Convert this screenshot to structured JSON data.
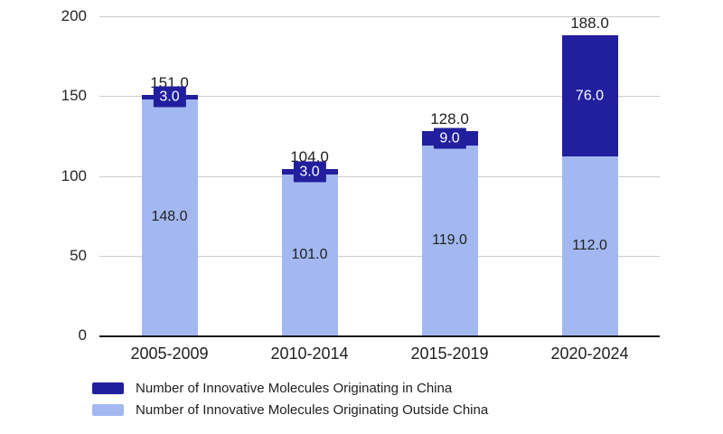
{
  "colors": {
    "in_china": "#221f9e",
    "outside_china": "#a3b8f0",
    "gridline": "#cccccc",
    "axis": "#1a1a1a",
    "text": "#212121",
    "background": "#ffffff",
    "segment_label_on_dark": "#ffffff"
  },
  "chart_data": {
    "type": "bar",
    "stacked": true,
    "title": "",
    "xlabel": "",
    "ylabel": "",
    "categories": [
      "2005-2009",
      "2010-2014",
      "2015-2019",
      "2020-2024"
    ],
    "series": [
      {
        "name": "Number of Innovative Molecules Originating in China",
        "color": "#221f9e",
        "position": "top",
        "values": [
          3.0,
          3.0,
          9.0,
          76.0
        ],
        "display_values": [
          "3.0",
          "3.0",
          "9.0",
          "76.0"
        ]
      },
      {
        "name": "Number of Innovative Molecules Originating Outside China",
        "color": "#a3b8f0",
        "position": "bottom",
        "values": [
          148.0,
          101.0,
          119.0,
          112.0
        ],
        "display_values": [
          "148.0",
          "101.0",
          "119.0",
          "112.0"
        ]
      }
    ],
    "totals": [
      151.0,
      104.0,
      128.0,
      188.0
    ],
    "display_totals": [
      "151.0",
      "104.0",
      "128.0",
      "188.0"
    ],
    "y_ticks": [
      0,
      50,
      100,
      150,
      200
    ],
    "y_tick_labels": [
      "0",
      "50",
      "100",
      "150",
      "200"
    ],
    "ylim": [
      0,
      200
    ],
    "grid": true,
    "legend_position": "bottom-left",
    "value_format": ".1f"
  }
}
